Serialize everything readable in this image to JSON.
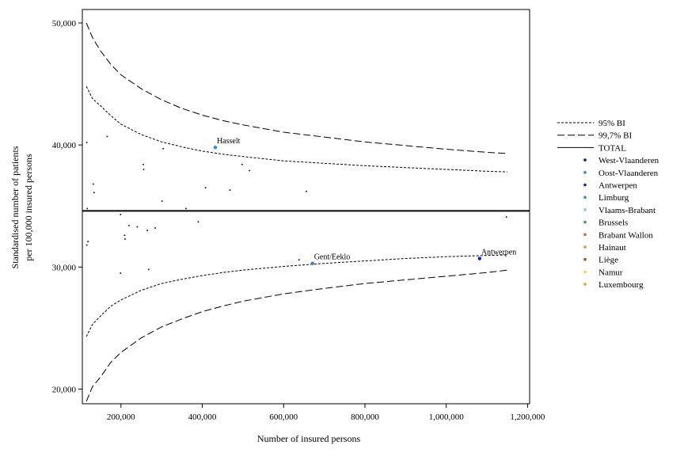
{
  "chart_data": {
    "type": "scatter",
    "xlabel": "Number of insured persons",
    "ylabel_lines": [
      "Standardised number of patients",
      "per 100,000 insured persons"
    ],
    "xlim": [
      105000,
      1205000
    ],
    "ylim": [
      18800,
      51100
    ],
    "xticks": [
      200000,
      400000,
      600000,
      800000,
      1000000,
      1200000
    ],
    "xtick_labels": [
      "200,000",
      "400,000",
      "600,000",
      "800,000",
      "1,000,000",
      "1,200,000"
    ],
    "yticks": [
      20000,
      30000,
      40000,
      50000
    ],
    "ytick_labels": [
      "20,000",
      "30,000",
      "40,000",
      "50,000"
    ],
    "total": 34600,
    "x_line_range": [
      115000,
      1150000
    ],
    "bounds": {
      "x": [
        115000,
        130000,
        150000,
        175000,
        200000,
        250000,
        300000,
        350000,
        400000,
        450000,
        500000,
        600000,
        700000,
        800000,
        900000,
        1000000,
        1100000,
        1150000
      ],
      "upper_997": [
        50000,
        48800,
        47700,
        46600,
        45750,
        44600,
        43700,
        43000,
        42450,
        42000,
        41650,
        41050,
        40650,
        40250,
        39950,
        39650,
        39400,
        39300
      ],
      "upper_95": [
        44800,
        43800,
        43200,
        42400,
        41700,
        40850,
        40250,
        39850,
        39500,
        39250,
        39050,
        38700,
        38500,
        38300,
        38150,
        38000,
        37850,
        37800
      ],
      "lower_95": [
        24300,
        25300,
        26000,
        26800,
        27300,
        28100,
        28650,
        29000,
        29300,
        29550,
        29750,
        30050,
        30300,
        30500,
        30700,
        30850,
        30950,
        31000
      ],
      "lower_997": [
        19000,
        20200,
        21000,
        22200,
        23000,
        24200,
        25100,
        25750,
        26350,
        26800,
        27200,
        27800,
        28250,
        28650,
        28950,
        29250,
        29550,
        29750
      ]
    },
    "points": [
      {
        "x": 116000,
        "y": 40200
      },
      {
        "x": 117000,
        "y": 34800
      },
      {
        "x": 116000,
        "y": 31800
      },
      {
        "x": 119000,
        "y": 32100
      },
      {
        "x": 132000,
        "y": 36800
      },
      {
        "x": 134000,
        "y": 36100
      },
      {
        "x": 166000,
        "y": 40700
      },
      {
        "x": 199000,
        "y": 34300
      },
      {
        "x": 199000,
        "y": 29500
      },
      {
        "x": 209000,
        "y": 32600
      },
      {
        "x": 210000,
        "y": 32300
      },
      {
        "x": 220000,
        "y": 33400
      },
      {
        "x": 240000,
        "y": 33300
      },
      {
        "x": 255000,
        "y": 38400
      },
      {
        "x": 256000,
        "y": 38000
      },
      {
        "x": 265000,
        "y": 33000
      },
      {
        "x": 268000,
        "y": 29800
      },
      {
        "x": 284000,
        "y": 33200
      },
      {
        "x": 301000,
        "y": 35400
      },
      {
        "x": 304000,
        "y": 39700
      },
      {
        "x": 360000,
        "y": 34800
      },
      {
        "x": 390000,
        "y": 33700
      },
      {
        "x": 408000,
        "y": 36500
      },
      {
        "x": 468000,
        "y": 36300
      },
      {
        "x": 498000,
        "y": 38400
      },
      {
        "x": 516000,
        "y": 37900
      },
      {
        "x": 638000,
        "y": 30600
      },
      {
        "x": 656000,
        "y": 36200
      },
      {
        "x": 1148000,
        "y": 34100
      }
    ],
    "highlighted": [
      {
        "label": "Hasselt",
        "x": 432000,
        "y": 39800,
        "color": "#2e8bd8"
      },
      {
        "label": "Gent/Eeklo",
        "x": 671000,
        "y": 30300,
        "color": "#3a78e0"
      },
      {
        "label": "Antwerpen",
        "x": 1082000,
        "y": 30700,
        "color": "#0a1fcf"
      }
    ],
    "legend": [
      {
        "label": "95% BI",
        "kind": "short-dash"
      },
      {
        "label": "99,7% BI",
        "kind": "long-dash"
      },
      {
        "label": "TOTAL",
        "kind": "solid"
      },
      {
        "label": "West-Vlaanderen",
        "kind": "dot",
        "color": "#0a1a8c"
      },
      {
        "label": "Oost-Vlaanderen",
        "kind": "dot",
        "color": "#3a78e0"
      },
      {
        "label": "Antwerpen",
        "kind": "dot",
        "color": "#0a1fcf"
      },
      {
        "label": "Limburg",
        "kind": "dot",
        "color": "#2e8bd8"
      },
      {
        "label": "Vlaams-Brabant",
        "kind": "dot",
        "color": "#8cc4ec"
      },
      {
        "label": "Brussels",
        "kind": "dot",
        "color": "#2aa84a"
      },
      {
        "label": "Brabant Wallon",
        "kind": "dot",
        "color": "#e0642a"
      },
      {
        "label": "Hainaut",
        "kind": "dot",
        "color": "#f08a30"
      },
      {
        "label": "Liège",
        "kind": "dot",
        "color": "#b04a2a"
      },
      {
        "label": "Namur",
        "kind": "dot",
        "color": "#f0d040"
      },
      {
        "label": "Luxembourg",
        "kind": "dot",
        "color": "#f0a030"
      }
    ],
    "legend_position": "right"
  }
}
